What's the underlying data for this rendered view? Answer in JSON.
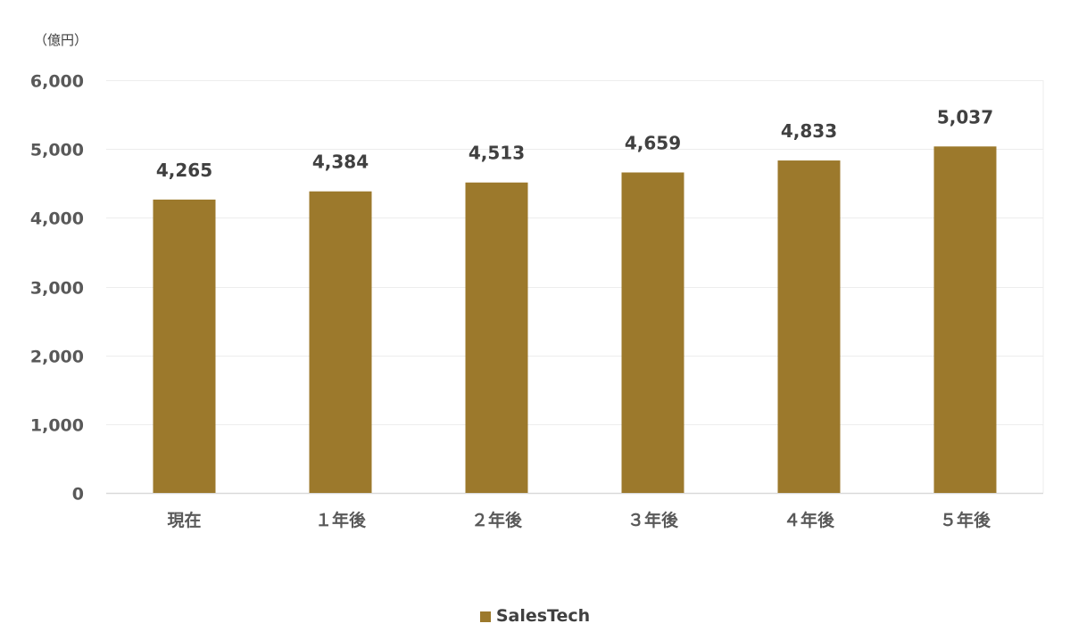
{
  "chart_data": {
    "type": "bar",
    "title": "",
    "unit_label": "（億円）",
    "xlabel": "",
    "ylabel": "",
    "categories": [
      "現在",
      "１年後",
      "２年後",
      "３年後",
      "４年後",
      "５年後"
    ],
    "series": [
      {
        "name": "SalesTech",
        "values": [
          4265,
          4384,
          4513,
          4659,
          4833,
          5037
        ],
        "color": "#9C792C"
      }
    ],
    "data_labels": [
      "4,265",
      "4,384",
      "4,513",
      "4,659",
      "4,833",
      "5,037"
    ],
    "ylim": [
      0,
      6000
    ],
    "yticks": [
      0,
      1000,
      2000,
      3000,
      4000,
      5000,
      6000
    ],
    "ytick_labels": [
      "0",
      "1,000",
      "2,000",
      "3,000",
      "4,000",
      "5,000",
      "6,000"
    ],
    "grid": true,
    "legend_position": "bottom",
    "gridline_color": "#EDEDED",
    "axis_color": "#D9D9D9",
    "text_color": "#595959"
  }
}
